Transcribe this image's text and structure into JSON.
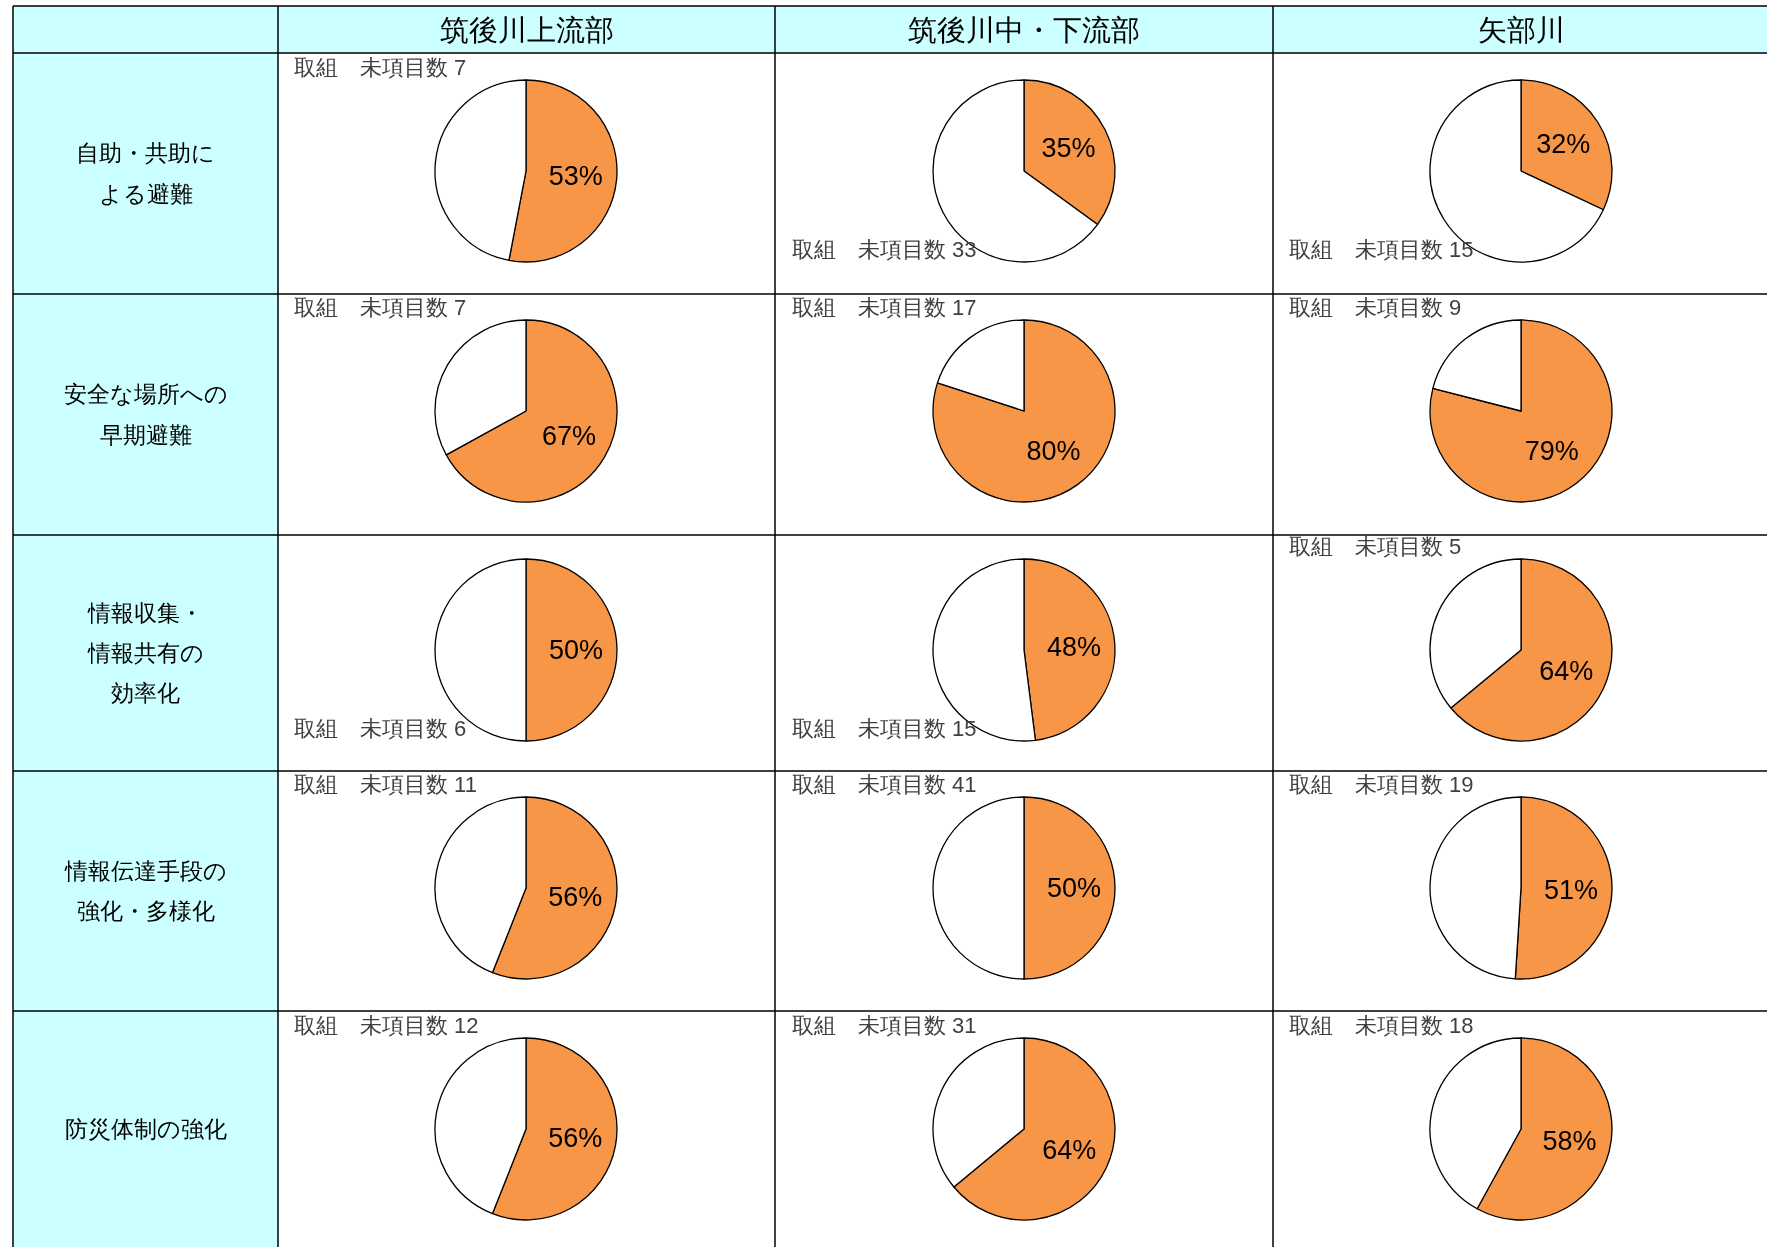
{
  "chart_data": [
    {
      "type": "other",
      "annotations": [
        "筑後川上流部",
        "筑後川中・下流部",
        "矢部川",
        "自助・共助による避難",
        "安全な場所への早期避難",
        "情報収集・情報共有の効率化",
        "情報伝達手段の強化・多様化",
        "防災体制の強化"
      ]
    },
    {
      "type": "pie",
      "categories": [
        null,
        null
      ],
      "values": [
        53,
        47
      ],
      "colors": [
        "#f79646",
        "#ffffff"
      ],
      "value_labels": [
        "53%",
        "取組　未項目数 7"
      ]
    },
    {
      "type": "pie",
      "categories": [
        null,
        null
      ],
      "values": [
        35,
        65
      ],
      "colors": [
        "#f79646",
        "#ffffff"
      ],
      "value_labels": [
        "35%",
        "取組　未項目数 33"
      ]
    },
    {
      "type": "pie",
      "categories": [
        null,
        null
      ],
      "values": [
        32,
        68
      ],
      "colors": [
        "#f79646",
        "#ffffff"
      ],
      "value_labels": [
        "32%",
        "取組　未項目数 15"
      ]
    },
    {
      "type": "pie",
      "categories": [
        null,
        null
      ],
      "values": [
        67,
        33
      ],
      "colors": [
        "#f79646",
        "#ffffff"
      ],
      "value_labels": [
        "67%",
        "取組　未項目数 7"
      ]
    },
    {
      "type": "pie",
      "categories": [
        null,
        null
      ],
      "values": [
        80,
        20
      ],
      "colors": [
        "#f79646",
        "#ffffff"
      ],
      "value_labels": [
        "80%",
        "取組　未項目数 17"
      ]
    },
    {
      "type": "pie",
      "categories": [
        null,
        null
      ],
      "values": [
        79,
        21
      ],
      "colors": [
        "#f79646",
        "#ffffff"
      ],
      "value_labels": [
        "79%",
        "取組　未項目数 9"
      ]
    },
    {
      "type": "pie",
      "categories": [
        null,
        null
      ],
      "values": [
        50,
        50
      ],
      "colors": [
        "#f79646",
        "#ffffff"
      ],
      "value_labels": [
        "50%",
        "取組　未項目数 6"
      ]
    },
    {
      "type": "pie",
      "categories": [
        null,
        null
      ],
      "values": [
        48,
        52
      ],
      "colors": [
        "#f79646",
        "#ffffff"
      ],
      "value_labels": [
        "48%",
        "取組　未項目数 15"
      ]
    },
    {
      "type": "pie",
      "categories": [
        null,
        null
      ],
      "values": [
        64,
        36
      ],
      "colors": [
        "#f79646",
        "#ffffff"
      ],
      "value_labels": [
        "64%",
        "取組　未項目数 5"
      ]
    },
    {
      "type": "pie",
      "categories": [
        null,
        null
      ],
      "values": [
        56,
        44
      ],
      "colors": [
        "#f79646",
        "#ffffff"
      ],
      "value_labels": [
        "56%",
        "取組　未項目数 11"
      ]
    },
    {
      "type": "pie",
      "categories": [
        null,
        null
      ],
      "values": [
        50,
        50
      ],
      "colors": [
        "#f79646",
        "#ffffff"
      ],
      "value_labels": [
        "50%",
        "取組　未項目数 41"
      ]
    },
    {
      "type": "pie",
      "categories": [
        null,
        null
      ],
      "values": [
        51,
        49
      ],
      "colors": [
        "#f79646",
        "#ffffff"
      ],
      "value_labels": [
        "51%",
        "取組　未項目数 19"
      ]
    },
    {
      "type": "pie",
      "categories": [
        null,
        null
      ],
      "values": [
        56,
        44
      ],
      "colors": [
        "#f79646",
        "#ffffff"
      ],
      "value_labels": [
        "56%",
        "取組　未項目数 12"
      ]
    },
    {
      "type": "pie",
      "categories": [
        null,
        null
      ],
      "values": [
        64,
        36
      ],
      "colors": [
        "#f79646",
        "#ffffff"
      ],
      "value_labels": [
        "64%",
        "取組　未項目数 31"
      ]
    },
    {
      "type": "pie",
      "categories": [
        null,
        null
      ],
      "values": [
        58,
        42
      ],
      "colors": [
        "#f79646",
        "#ffffff"
      ],
      "value_labels": [
        "58%",
        "取組　未項目数 18"
      ]
    }
  ]
}
